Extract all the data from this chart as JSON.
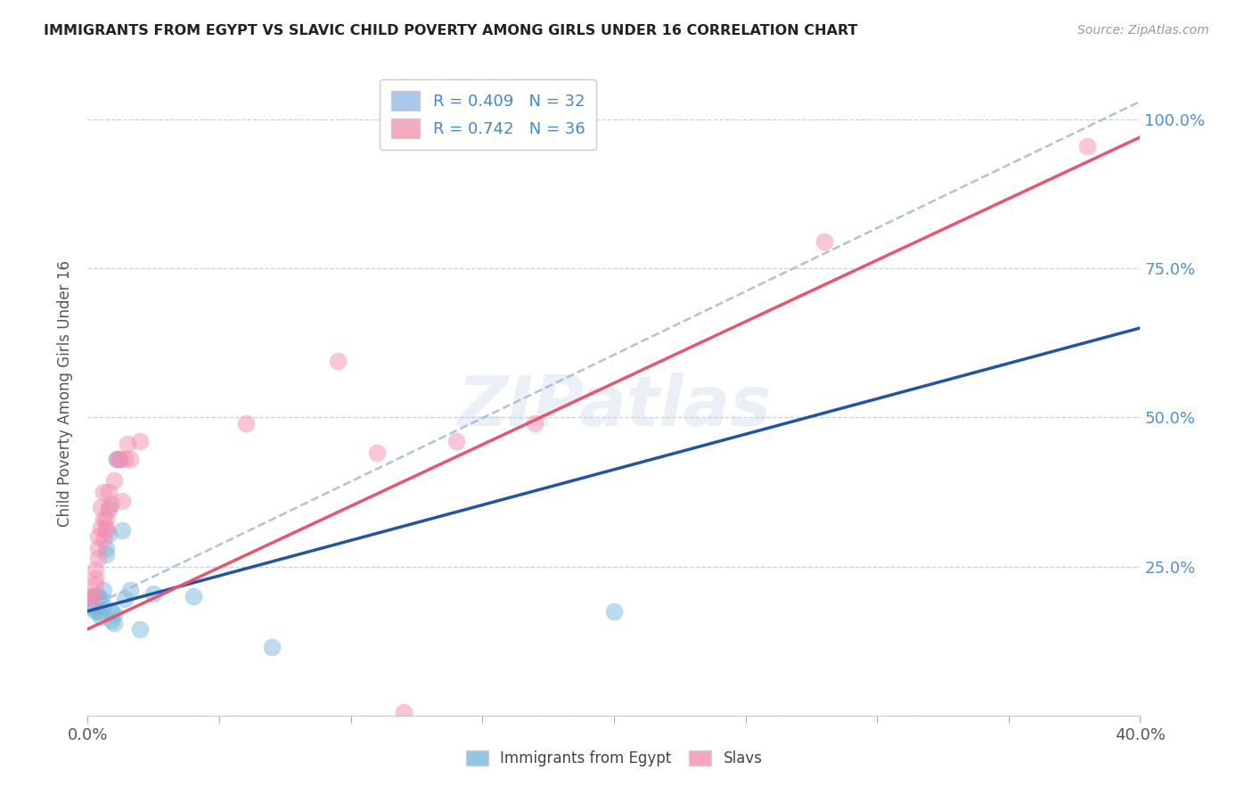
{
  "title": "IMMIGRANTS FROM EGYPT VS SLAVIC CHILD POVERTY AMONG GIRLS UNDER 16 CORRELATION CHART",
  "source": "Source: ZipAtlas.com",
  "ylabel": "Child Poverty Among Girls Under 16",
  "xlim": [
    0.0,
    0.4
  ],
  "ylim": [
    0.0,
    1.08
  ],
  "xticks": [
    0.0,
    0.05,
    0.1,
    0.15,
    0.2,
    0.25,
    0.3,
    0.35,
    0.4
  ],
  "xtick_labels_show": [
    "0.0%",
    "",
    "",
    "",
    "",
    "",
    "",
    "",
    "40.0%"
  ],
  "yticks": [
    0.0,
    0.25,
    0.5,
    0.75,
    1.0
  ],
  "ytick_labels": [
    "",
    "25.0%",
    "50.0%",
    "75.0%",
    "100.0%"
  ],
  "watermark": "ZIPatlas",
  "legend_item1_label": "R = 0.409   N = 32",
  "legend_item1_color": "#aac8e8",
  "legend_item2_label": "R = 0.742   N = 36",
  "legend_item2_color": "#f4aabf",
  "egypt_color": "#7ab8dc",
  "slavic_color": "#f48fb1",
  "egypt_line_color": "#2255a0",
  "slavic_line_color": "#e8566e",
  "dashed_line_color": "#a8bcd8",
  "background_color": "#ffffff",
  "grid_color": "#c8d0d8",
  "title_color": "#333333",
  "right_ytick_color": "#5090d0",
  "egypt_trendline": [
    [
      0.0,
      0.175
    ],
    [
      0.4,
      0.65
    ]
  ],
  "slavic_trendline": [
    [
      0.0,
      0.145
    ],
    [
      0.4,
      0.97
    ]
  ],
  "dashed_trendline": [
    [
      0.0,
      0.18
    ],
    [
      0.4,
      1.03
    ]
  ],
  "egypt_scatter": [
    [
      0.001,
      0.195
    ],
    [
      0.001,
      0.19
    ],
    [
      0.002,
      0.185
    ],
    [
      0.002,
      0.18
    ],
    [
      0.003,
      0.19
    ],
    [
      0.003,
      0.175
    ],
    [
      0.003,
      0.2
    ],
    [
      0.004,
      0.2
    ],
    [
      0.004,
      0.175
    ],
    [
      0.004,
      0.185
    ],
    [
      0.005,
      0.165
    ],
    [
      0.005,
      0.195
    ],
    [
      0.006,
      0.21
    ],
    [
      0.006,
      0.185
    ],
    [
      0.007,
      0.28
    ],
    [
      0.007,
      0.27
    ],
    [
      0.008,
      0.35
    ],
    [
      0.008,
      0.305
    ],
    [
      0.009,
      0.175
    ],
    [
      0.009,
      0.16
    ],
    [
      0.01,
      0.155
    ],
    [
      0.01,
      0.17
    ],
    [
      0.011,
      0.43
    ],
    [
      0.012,
      0.43
    ],
    [
      0.013,
      0.31
    ],
    [
      0.014,
      0.195
    ],
    [
      0.016,
      0.21
    ],
    [
      0.02,
      0.145
    ],
    [
      0.025,
      0.205
    ],
    [
      0.04,
      0.2
    ],
    [
      0.07,
      0.115
    ],
    [
      0.2,
      0.175
    ]
  ],
  "slavic_scatter": [
    [
      0.001,
      0.2
    ],
    [
      0.002,
      0.195
    ],
    [
      0.002,
      0.2
    ],
    [
      0.003,
      0.23
    ],
    [
      0.003,
      0.22
    ],
    [
      0.003,
      0.245
    ],
    [
      0.004,
      0.3
    ],
    [
      0.004,
      0.28
    ],
    [
      0.004,
      0.265
    ],
    [
      0.005,
      0.35
    ],
    [
      0.005,
      0.315
    ],
    [
      0.006,
      0.33
    ],
    [
      0.006,
      0.295
    ],
    [
      0.006,
      0.375
    ],
    [
      0.007,
      0.31
    ],
    [
      0.007,
      0.315
    ],
    [
      0.007,
      0.33
    ],
    [
      0.008,
      0.345
    ],
    [
      0.008,
      0.375
    ],
    [
      0.009,
      0.355
    ],
    [
      0.01,
      0.395
    ],
    [
      0.011,
      0.43
    ],
    [
      0.012,
      0.43
    ],
    [
      0.013,
      0.36
    ],
    [
      0.014,
      0.43
    ],
    [
      0.015,
      0.455
    ],
    [
      0.016,
      0.43
    ],
    [
      0.02,
      0.46
    ],
    [
      0.06,
      0.49
    ],
    [
      0.095,
      0.595
    ],
    [
      0.11,
      0.44
    ],
    [
      0.12,
      0.005
    ],
    [
      0.14,
      0.46
    ],
    [
      0.17,
      0.49
    ],
    [
      0.28,
      0.795
    ],
    [
      0.38,
      0.955
    ]
  ]
}
